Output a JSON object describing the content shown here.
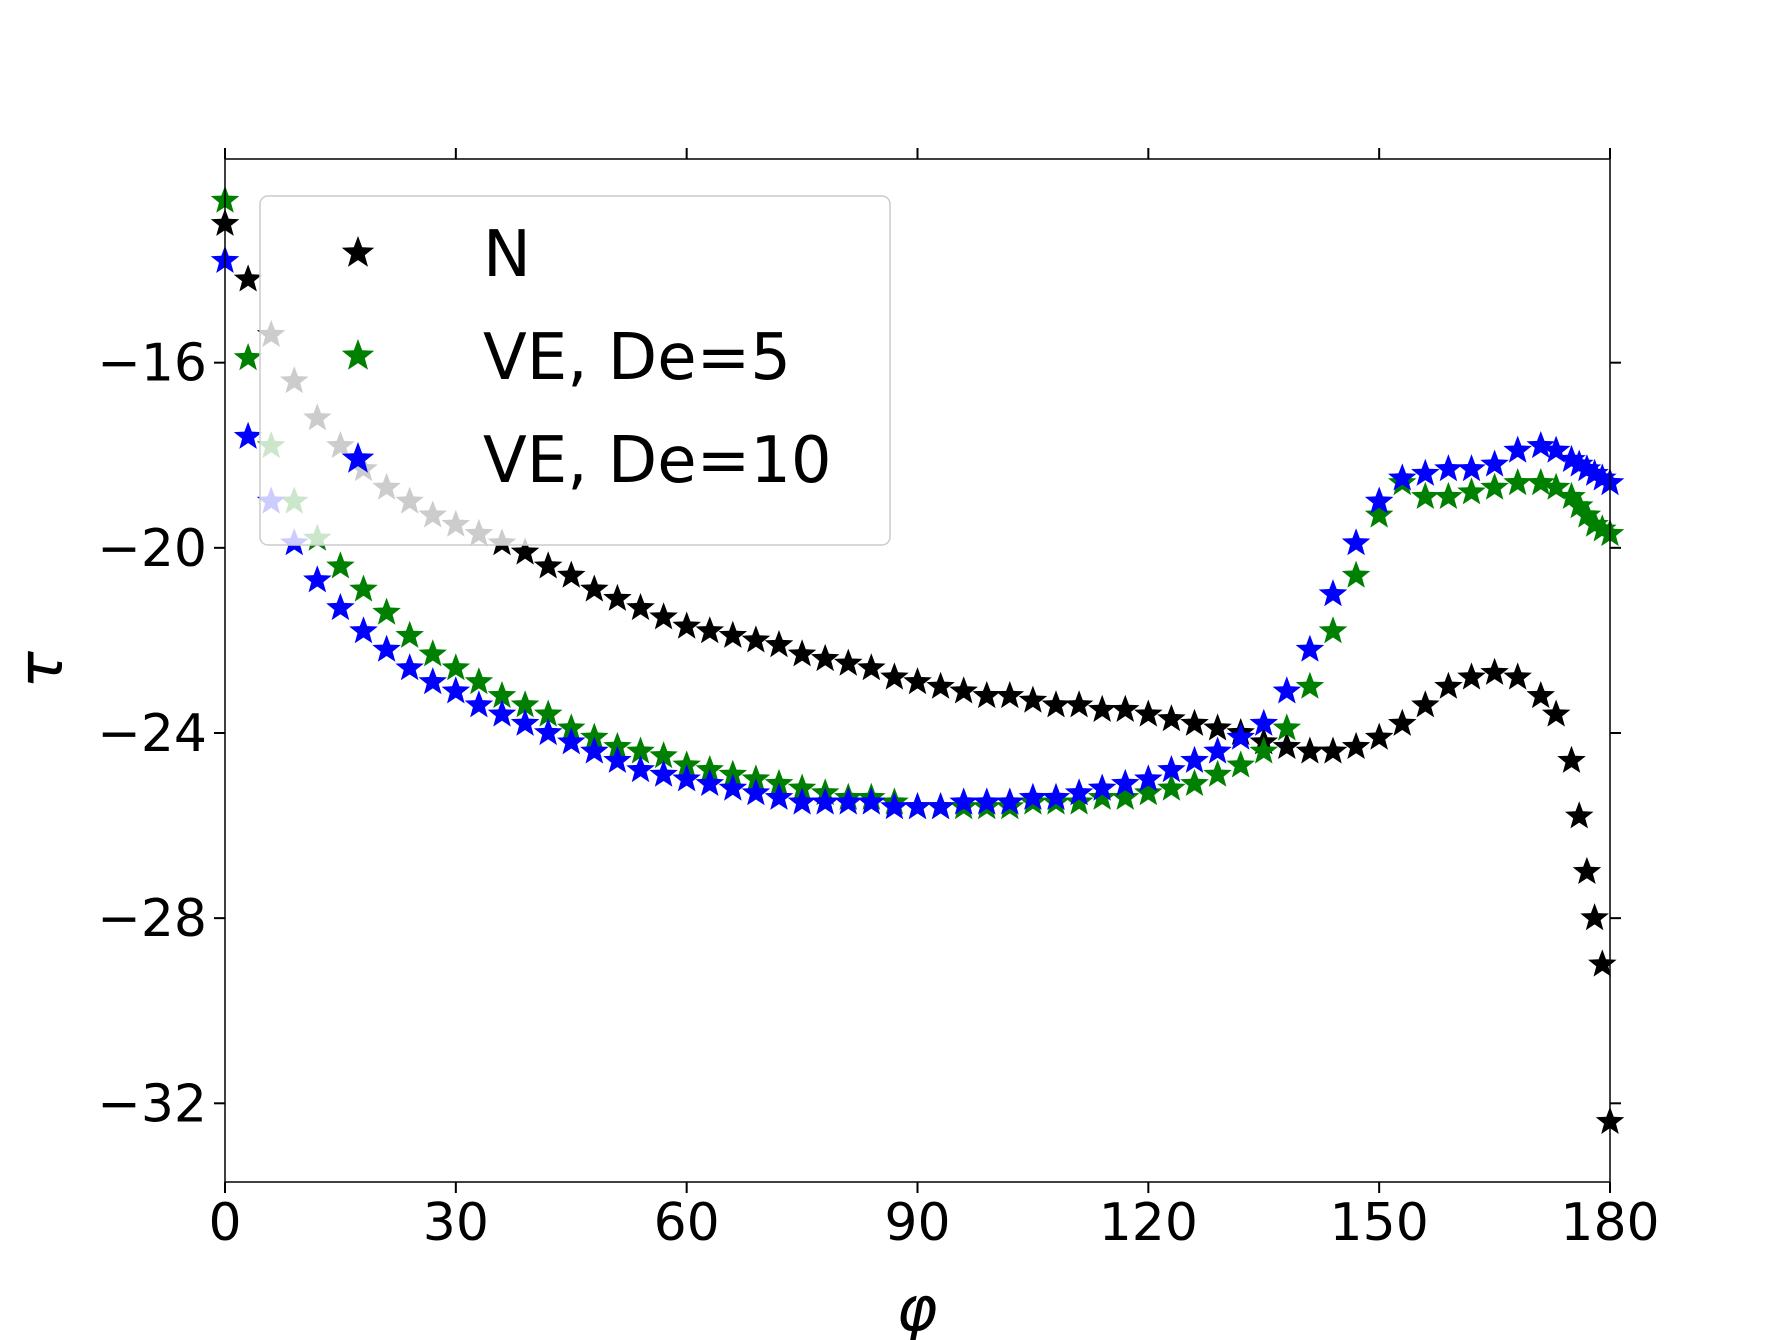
{
  "chart_data": {
    "type": "scatter",
    "xlabel": "φ",
    "ylabel": "τ",
    "x": [
      0,
      3,
      6,
      9,
      12,
      15,
      18,
      21,
      24,
      27,
      30,
      33,
      36,
      39,
      42,
      45,
      48,
      51,
      54,
      57,
      60,
      63,
      66,
      69,
      72,
      75,
      78,
      81,
      84,
      87,
      90,
      93,
      96,
      99,
      102,
      105,
      108,
      111,
      114,
      117,
      120,
      123,
      126,
      129,
      132,
      135,
      138,
      141,
      144,
      147,
      150,
      153,
      156,
      159,
      162,
      165,
      168,
      171,
      173,
      175,
      176,
      177,
      178,
      179,
      180
    ],
    "series": [
      {
        "name": "N",
        "color": "#000000",
        "values": [
          -13.0,
          -14.2,
          -15.4,
          -16.4,
          -17.2,
          -17.8,
          -18.3,
          -18.7,
          -19.0,
          -19.3,
          -19.5,
          -19.7,
          -19.9,
          -20.1,
          -20.4,
          -20.6,
          -20.9,
          -21.1,
          -21.3,
          -21.5,
          -21.7,
          -21.8,
          -21.9,
          -22.0,
          -22.1,
          -22.3,
          -22.4,
          -22.5,
          -22.6,
          -22.8,
          -22.9,
          -23.0,
          -23.1,
          -23.2,
          -23.2,
          -23.3,
          -23.4,
          -23.4,
          -23.5,
          -23.5,
          -23.6,
          -23.7,
          -23.8,
          -23.9,
          -24.0,
          -24.2,
          -24.3,
          -24.4,
          -24.4,
          -24.3,
          -24.1,
          -23.8,
          -23.4,
          -23.0,
          -22.8,
          -22.7,
          -22.8,
          -23.2,
          -23.6,
          -24.6,
          -25.8,
          -27.0,
          -28.0,
          -29.0,
          -32.4
        ]
      },
      {
        "name": "VE, De=5",
        "color": "#008000",
        "values": [
          -12.5,
          -15.9,
          -17.8,
          -19.0,
          -19.8,
          -20.4,
          -20.9,
          -21.4,
          -21.9,
          -22.3,
          -22.6,
          -22.9,
          -23.2,
          -23.4,
          -23.6,
          -23.9,
          -24.1,
          -24.3,
          -24.4,
          -24.5,
          -24.7,
          -24.8,
          -24.9,
          -25.0,
          -25.1,
          -25.2,
          -25.3,
          -25.4,
          -25.4,
          -25.5,
          -25.6,
          -25.6,
          -25.6,
          -25.6,
          -25.6,
          -25.5,
          -25.5,
          -25.5,
          -25.4,
          -25.4,
          -25.3,
          -25.2,
          -25.1,
          -24.9,
          -24.7,
          -24.4,
          -23.9,
          -23.0,
          -21.8,
          -20.6,
          -19.3,
          -18.6,
          -18.9,
          -18.9,
          -18.8,
          -18.7,
          -18.6,
          -18.6,
          -18.7,
          -18.9,
          -19.1,
          -19.3,
          -19.5,
          -19.6,
          -19.7
        ]
      },
      {
        "name": "VE, De=10",
        "color": "#0000ff",
        "values": [
          -13.8,
          -17.6,
          -19.0,
          -19.9,
          -20.7,
          -21.3,
          -21.8,
          -22.2,
          -22.6,
          -22.9,
          -23.1,
          -23.4,
          -23.6,
          -23.8,
          -24.0,
          -24.2,
          -24.4,
          -24.6,
          -24.8,
          -24.9,
          -25.0,
          -25.1,
          -25.2,
          -25.3,
          -25.4,
          -25.5,
          -25.5,
          -25.5,
          -25.5,
          -25.6,
          -25.6,
          -25.6,
          -25.5,
          -25.5,
          -25.5,
          -25.4,
          -25.4,
          -25.3,
          -25.2,
          -25.1,
          -25.0,
          -24.8,
          -24.6,
          -24.4,
          -24.1,
          -23.8,
          -23.1,
          -22.2,
          -21.0,
          -19.9,
          -19.0,
          -18.5,
          -18.4,
          -18.3,
          -18.3,
          -18.2,
          -17.9,
          -17.8,
          -17.9,
          -18.1,
          -18.2,
          -18.3,
          -18.4,
          -18.5,
          -18.6
        ]
      }
    ],
    "xlim": [
      0,
      180
    ],
    "xticks": [
      0,
      30,
      60,
      90,
      120,
      150,
      180
    ],
    "ylim": [
      -33.7,
      -11.6
    ],
    "yticks": [
      {
        "value": -32,
        "label": "−32"
      },
      {
        "value": -28,
        "label": "−28"
      },
      {
        "value": -24,
        "label": "−24"
      },
      {
        "value": -20,
        "label": "−20"
      },
      {
        "value": -16,
        "label": "−16"
      }
    ],
    "legend": "upper left"
  }
}
